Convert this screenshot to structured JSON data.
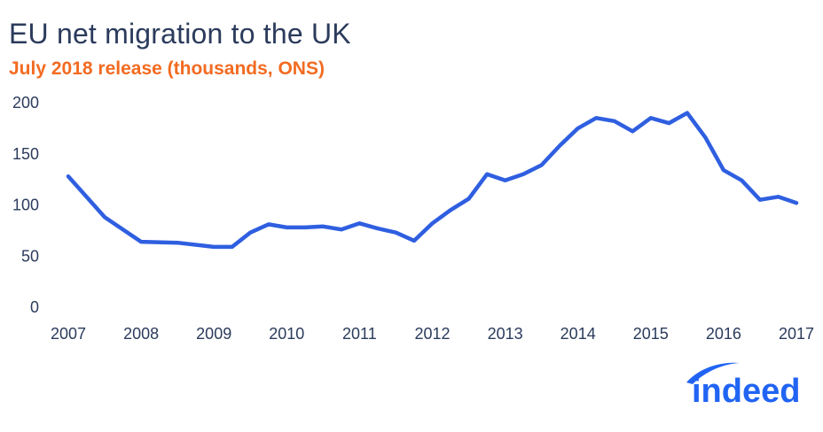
{
  "chart_data": {
    "type": "line",
    "title": "EU net migration to the UK",
    "subtitle": "July 2018 release (thousands, ONS)",
    "xlabel": "",
    "ylabel": "",
    "xlim": [
      2007,
      2017
    ],
    "ylim": [
      0,
      200
    ],
    "y_ticks": [
      0,
      50,
      100,
      150,
      200
    ],
    "x_ticks": [
      "2007",
      "2008",
      "2009",
      "2010",
      "2011",
      "2012",
      "2013",
      "2014",
      "2015",
      "2016",
      "2017"
    ],
    "grid": false,
    "legend": "none",
    "series": [
      {
        "color": "#2f5fe0",
        "x": [
          2007.0,
          2007.5,
          2008.0,
          2008.5,
          2009.0,
          2009.25,
          2009.5,
          2009.75,
          2010.0,
          2010.25,
          2010.5,
          2010.75,
          2011.0,
          2011.25,
          2011.5,
          2011.75,
          2012.0,
          2012.25,
          2012.5,
          2012.75,
          2013.0,
          2013.25,
          2013.5,
          2013.75,
          2014.0,
          2014.25,
          2014.5,
          2014.75,
          2015.0,
          2015.25,
          2015.5,
          2015.75,
          2016.0,
          2016.25,
          2016.5,
          2016.75,
          2017.0
        ],
        "values": [
          128,
          88,
          64,
          63,
          59,
          59,
          73,
          81,
          78,
          78,
          79,
          76,
          82,
          77,
          73,
          65,
          82,
          95,
          106,
          130,
          124,
          130,
          139,
          158,
          175,
          185,
          182,
          172,
          185,
          180,
          190,
          166,
          134,
          124,
          105,
          108,
          102
        ]
      }
    ]
  },
  "logo": {
    "text": "indeed"
  }
}
